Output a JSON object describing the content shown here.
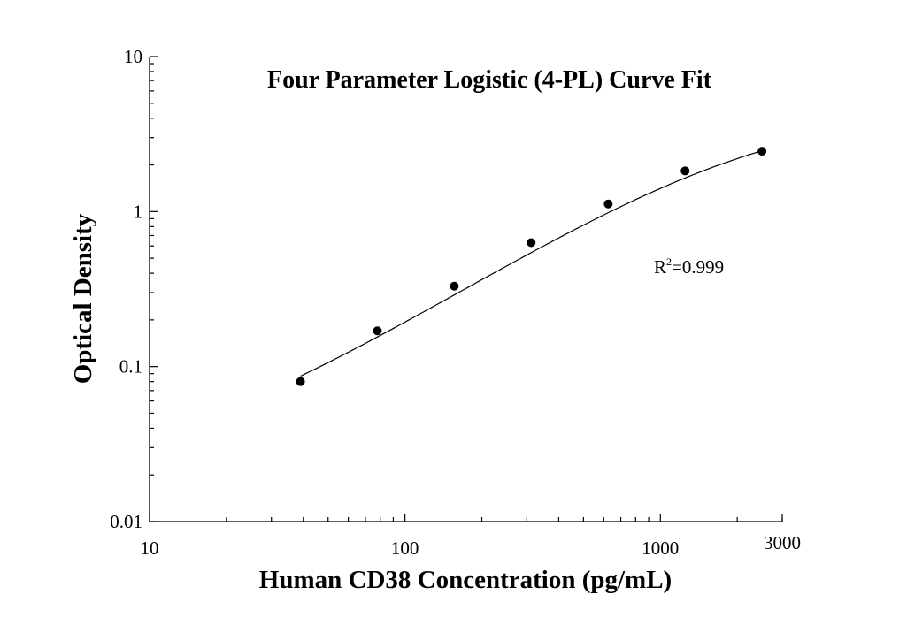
{
  "chart_data": {
    "type": "scatter",
    "title": "Four Parameter Logistic (4-PL) Curve Fit",
    "xlabel": "Human CD38 Concentration (pg/mL)",
    "ylabel": "Optical Density",
    "x_scale": "log",
    "y_scale": "log",
    "xlim": [
      10,
      3000
    ],
    "ylim": [
      0.01,
      10
    ],
    "x_tick_labels": [
      {
        "value": 10,
        "label": "10"
      },
      {
        "value": 100,
        "label": "100"
      },
      {
        "value": 1000,
        "label": "1000"
      },
      {
        "value": 3000,
        "label": "3000"
      }
    ],
    "y_tick_labels": [
      {
        "value": 0.01,
        "label": "0.01"
      },
      {
        "value": 0.1,
        "label": "0.1"
      },
      {
        "value": 1,
        "label": "1"
      },
      {
        "value": 10,
        "label": "10"
      }
    ],
    "points": [
      {
        "x": 39,
        "y": 0.08
      },
      {
        "x": 78,
        "y": 0.17
      },
      {
        "x": 156,
        "y": 0.33
      },
      {
        "x": 312,
        "y": 0.63
      },
      {
        "x": 625,
        "y": 1.12
      },
      {
        "x": 1250,
        "y": 1.83
      },
      {
        "x": 2500,
        "y": 2.45
      }
    ],
    "fit_curve": {
      "model": "4PL",
      "A": 0.02,
      "B": 1.04,
      "C": 2290,
      "D": 4.7,
      "x_range": [
        39,
        2500
      ]
    },
    "annotation": {
      "base": "R",
      "sup": "2",
      "value": "=0.999"
    },
    "grid": false,
    "colors": {
      "marker": "#000000",
      "line": "#000000",
      "axis": "#000000"
    }
  }
}
